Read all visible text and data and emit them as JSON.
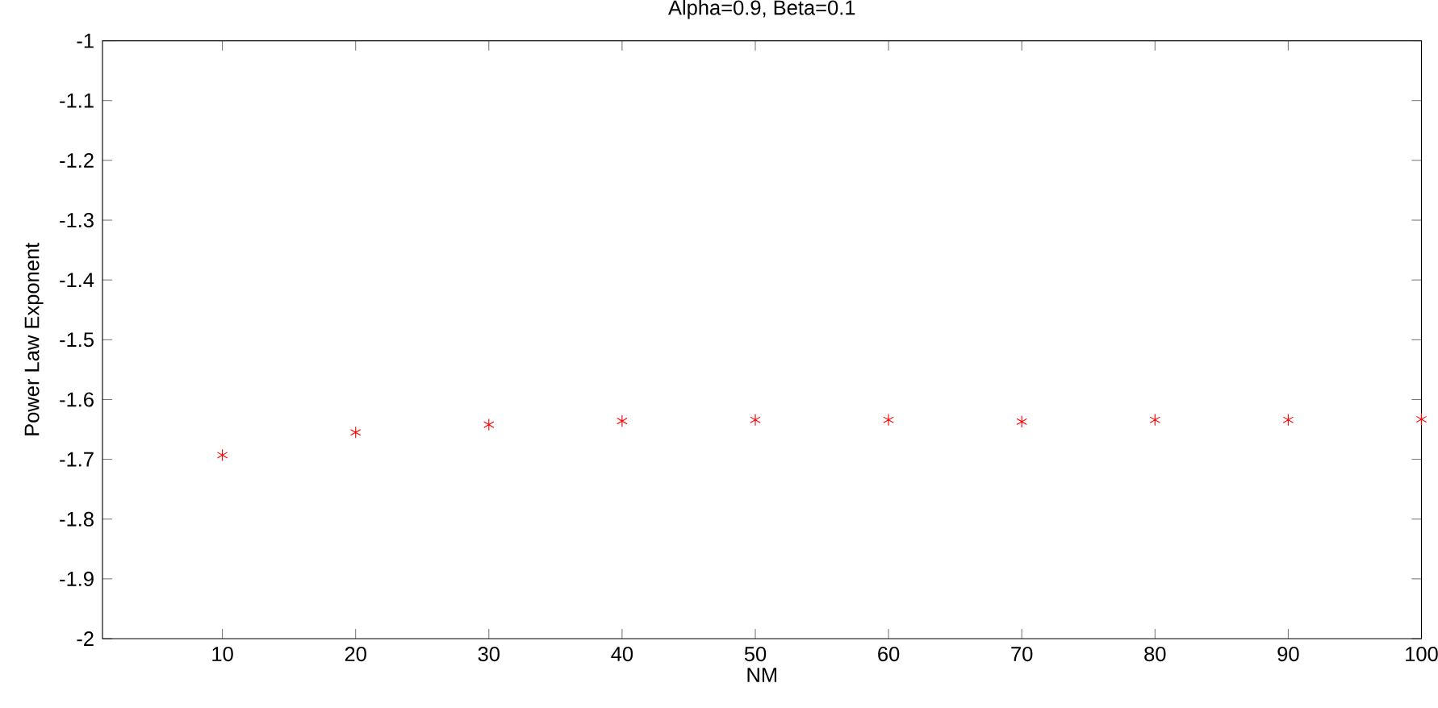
{
  "chart_data": {
    "type": "scatter",
    "title": "Alpha=0.9, Beta=0.1",
    "xlabel": "NM",
    "ylabel": "Power Law Exponent",
    "x": [
      10,
      20,
      30,
      40,
      50,
      60,
      70,
      80,
      90,
      100
    ],
    "values": [
      -1.693,
      -1.655,
      -1.642,
      -1.636,
      -1.634,
      -1.634,
      -1.637,
      -1.634,
      -1.634,
      -1.633
    ],
    "color": "#ff0000",
    "marker": "cross",
    "xlim": [
      1,
      100
    ],
    "xticks": [
      10,
      20,
      30,
      40,
      50,
      60,
      70,
      80,
      90,
      100
    ],
    "ylim": [
      -2,
      -1
    ],
    "yticks": [
      -2,
      -1.9,
      -1.8,
      -1.7,
      -1.6,
      -1.5,
      -1.4,
      -1.3,
      -1.2,
      -1.1,
      -1
    ]
  }
}
